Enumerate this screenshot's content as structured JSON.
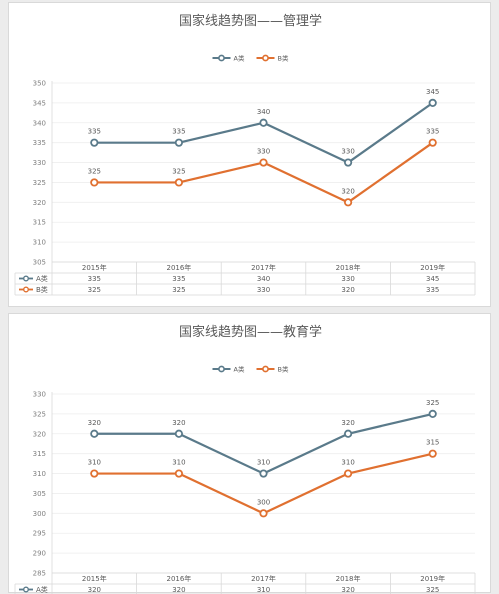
{
  "chart_data": [
    {
      "type": "line",
      "title": "国家线趋势图——管理学",
      "categories": [
        "2015年",
        "2016年",
        "2017年",
        "2018年",
        "2019年"
      ],
      "series": [
        {
          "name": "A类",
          "values": [
            335,
            335,
            340,
            330,
            345
          ],
          "color": "#5a7a8a"
        },
        {
          "name": "B类",
          "values": [
            325,
            325,
            330,
            320,
            335
          ],
          "color": "#e07030"
        }
      ],
      "yticks": [
        305,
        310,
        315,
        320,
        325,
        330,
        335,
        340,
        345,
        350
      ],
      "ylim": [
        305,
        350
      ],
      "legend": "top",
      "data_table": true,
      "grid": true
    },
    {
      "type": "line",
      "title": "国家线趋势图——教育学",
      "categories": [
        "2015年",
        "2016年",
        "2017年",
        "2018年",
        "2019年"
      ],
      "series": [
        {
          "name": "A类",
          "values": [
            320,
            320,
            310,
            320,
            325
          ],
          "color": "#5a7a8a"
        },
        {
          "name": "B类",
          "values": [
            310,
            310,
            300,
            310,
            315
          ],
          "color": "#e07030"
        }
      ],
      "yticks": [
        285,
        290,
        295,
        300,
        305,
        310,
        315,
        320,
        325,
        330
      ],
      "ylim": [
        285,
        330
      ],
      "legend": "top",
      "data_table": true,
      "grid": true
    }
  ]
}
